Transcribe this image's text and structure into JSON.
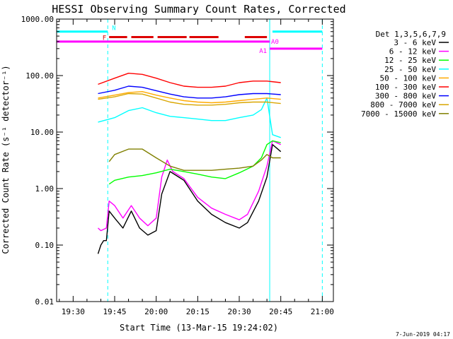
{
  "chart_data": {
    "type": "line",
    "title": "HESSI Observing Summary Count Rates, Corrected",
    "xlabel": "Start Time (13-Mar-15 19:24:02)",
    "ylabel": "Corrected Count Rate (s⁻¹ detector⁻¹)",
    "yscale": "log",
    "xlim": [
      "19:24:02",
      "21:04:00"
    ],
    "ylim": [
      0.01,
      1000
    ],
    "x_ticks": [
      "19:30",
      "19:45",
      "20:00",
      "20:15",
      "20:30",
      "20:45",
      "21:00"
    ],
    "y_ticks": [
      "0.01",
      "0.10",
      "1.00",
      "10.00",
      "100.00",
      "1000.00"
    ],
    "grid": false,
    "legend_title": "Det 1,3,5,6,7,9",
    "legend_position": "right",
    "series": [
      {
        "name": "3 - 6 keV",
        "color": "#000000",
        "x": [
          "19:39",
          "19:40",
          "19:41",
          "19:42",
          "19:43",
          "19:45",
          "19:48",
          "19:51",
          "19:54",
          "19:57",
          "20:00",
          "20:02",
          "20:05",
          "20:10",
          "20:15",
          "20:20",
          "20:25",
          "20:30",
          "20:33",
          "20:37",
          "20:40",
          "20:42",
          "20:45"
        ],
        "values": [
          0.07,
          0.1,
          0.12,
          0.12,
          0.4,
          0.3,
          0.2,
          0.4,
          0.2,
          0.15,
          0.18,
          0.8,
          2.0,
          1.4,
          0.6,
          0.35,
          0.25,
          0.2,
          0.25,
          0.6,
          1.6,
          6.0,
          4.5
        ]
      },
      {
        "name": "6 - 12 keV",
        "color": "#ff00ff",
        "x": [
          "19:39",
          "19:40",
          "19:42",
          "19:43",
          "19:45",
          "19:48",
          "19:51",
          "19:54",
          "19:57",
          "20:00",
          "20:02",
          "20:04",
          "20:06",
          "20:10",
          "20:15",
          "20:20",
          "20:25",
          "20:30",
          "20:33",
          "20:37",
          "20:40",
          "20:42",
          "20:45"
        ],
        "values": [
          0.2,
          0.18,
          0.2,
          0.6,
          0.5,
          0.3,
          0.5,
          0.3,
          0.22,
          0.3,
          1.6,
          3.2,
          2.0,
          1.5,
          0.7,
          0.45,
          0.35,
          0.28,
          0.35,
          0.9,
          2.5,
          7.0,
          6.0
        ]
      },
      {
        "name": "12 - 25 keV",
        "color": "#00ff00",
        "x": [
          "19:43",
          "19:45",
          "19:50",
          "19:55",
          "20:00",
          "20:05",
          "20:10",
          "20:15",
          "20:20",
          "20:25",
          "20:30",
          "20:35",
          "20:38",
          "20:40",
          "20:42",
          "20:45"
        ],
        "values": [
          1.2,
          1.4,
          1.6,
          1.7,
          1.9,
          2.2,
          2.0,
          1.8,
          1.6,
          1.5,
          1.9,
          2.5,
          3.5,
          6.0,
          7.0,
          6.5
        ]
      },
      {
        "name": "25 - 50 keV",
        "color": "#00ffff",
        "x": [
          "19:39",
          "19:45",
          "19:50",
          "19:55",
          "20:00",
          "20:05",
          "20:10",
          "20:15",
          "20:20",
          "20:25",
          "20:30",
          "20:35",
          "20:38",
          "20:40",
          "20:42",
          "20:45"
        ],
        "values": [
          15,
          18,
          24,
          27,
          22,
          19,
          18,
          17,
          16,
          16,
          18,
          20,
          25,
          40,
          9,
          8
        ]
      },
      {
        "name": "50 - 100 keV",
        "color": "#ffaa00",
        "x": [
          "19:39",
          "19:45",
          "19:50",
          "19:55",
          "20:00",
          "20:05",
          "20:10",
          "20:15",
          "20:20",
          "20:25",
          "20:30",
          "20:35",
          "20:40",
          "20:45"
        ],
        "values": [
          40,
          45,
          50,
          52,
          45,
          40,
          36,
          34,
          33,
          34,
          36,
          38,
          40,
          38
        ]
      },
      {
        "name": "100 - 300 keV",
        "color": "#ff0000",
        "x": [
          "19:39",
          "19:45",
          "19:50",
          "19:55",
          "20:00",
          "20:05",
          "20:10",
          "20:15",
          "20:20",
          "20:25",
          "20:30",
          "20:35",
          "20:40",
          "20:45"
        ],
        "values": [
          70,
          90,
          110,
          105,
          90,
          75,
          65,
          62,
          62,
          65,
          75,
          80,
          80,
          75
        ]
      },
      {
        "name": "300 - 800 keV",
        "color": "#0000ff",
        "x": [
          "19:39",
          "19:45",
          "19:50",
          "19:55",
          "20:00",
          "20:05",
          "20:10",
          "20:15",
          "20:20",
          "20:25",
          "20:30",
          "20:35",
          "20:40",
          "20:45"
        ],
        "values": [
          48,
          55,
          65,
          62,
          54,
          47,
          42,
          40,
          40,
          42,
          46,
          48,
          48,
          46
        ]
      },
      {
        "name": "800 - 7000 keV",
        "color": "#d9a600",
        "x": [
          "19:39",
          "19:45",
          "19:50",
          "19:55",
          "20:00",
          "20:05",
          "20:10",
          "20:15",
          "20:20",
          "20:25",
          "20:30",
          "20:35",
          "20:40",
          "20:45"
        ],
        "values": [
          38,
          42,
          48,
          47,
          40,
          34,
          31,
          30,
          30,
          31,
          33,
          34,
          34,
          32
        ]
      },
      {
        "name": "7000 - 15000 keV",
        "color": "#808000",
        "x": [
          "19:43",
          "19:45",
          "19:50",
          "19:55",
          "20:00",
          "20:05",
          "20:10",
          "20:15",
          "20:20",
          "20:25",
          "20:30",
          "20:35",
          "20:38",
          "20:40",
          "20:42",
          "20:45"
        ],
        "values": [
          3.0,
          4.0,
          5.0,
          5.0,
          3.5,
          2.5,
          2.1,
          2.1,
          2.1,
          2.2,
          2.3,
          2.5,
          3.2,
          4.0,
          3.5,
          3.5
        ]
      }
    ],
    "annotations": [
      {
        "label": "N",
        "color": "#00ffff",
        "y": 600,
        "segments": [
          [
            "19:24:02",
            "19:42:30"
          ],
          [
            "20:42:00",
            "21:00:00"
          ]
        ]
      },
      {
        "label": "F",
        "color": "#dd0000",
        "y": 480,
        "segments": [
          [
            "19:43:00",
            "19:49:30"
          ],
          [
            "19:51:00",
            "19:59:00"
          ],
          [
            "20:00:30",
            "20:11:00"
          ],
          [
            "20:12:00",
            "20:22:30"
          ],
          [
            "20:32:00",
            "20:40:00"
          ]
        ]
      },
      {
        "label": "A0",
        "color": "#ff00ff",
        "y": 400,
        "segments": [
          [
            "19:24:02",
            "20:41:00"
          ]
        ]
      },
      {
        "label": "A1",
        "color": "#ff00ff",
        "y": 300,
        "segments": [
          [
            "20:41:00",
            "21:00:00"
          ]
        ]
      }
    ],
    "vertical_lines": [
      {
        "x": "19:42:30",
        "color": "#00ffff",
        "style": "dashed"
      },
      {
        "x": "20:41:00",
        "color": "#00ffff",
        "style": "solid"
      },
      {
        "x": "21:00:00",
        "color": "#00ffff",
        "style": "dashed"
      }
    ]
  },
  "footer_date": "7-Jun-2019 04:17"
}
